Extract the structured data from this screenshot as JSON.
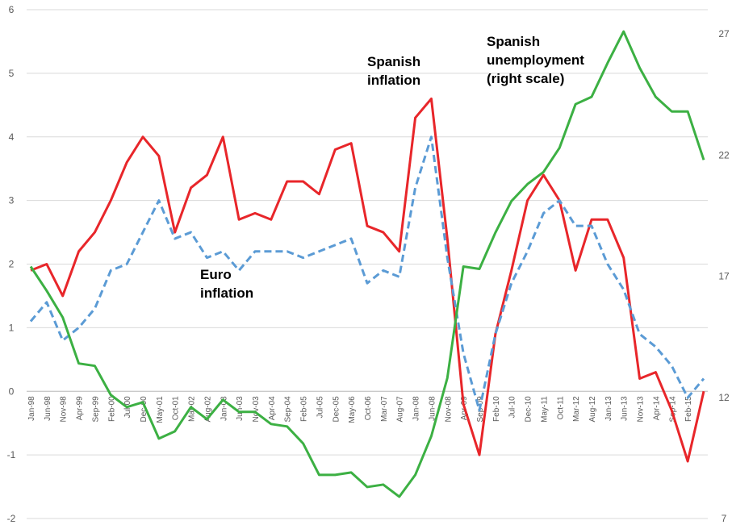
{
  "chart_data": {
    "type": "line",
    "categories": [
      "Jan-98",
      "Jun-98",
      "Nov-98",
      "Apr-99",
      "Sep-99",
      "Feb-00",
      "Jul-00",
      "Dec-00",
      "May-01",
      "Oct-01",
      "Mar-02",
      "Aug-02",
      "Jan-03",
      "Jun-03",
      "Nov-03",
      "Apr-04",
      "Sep-04",
      "Feb-05",
      "Jul-05",
      "Dec-05",
      "May-06",
      "Oct-06",
      "Mar-07",
      "Aug-07",
      "Jan-08",
      "Jun-08",
      "Nov-08",
      "Apr-09",
      "Sep-09",
      "Feb-10",
      "Jul-10",
      "Dec-10",
      "May-11",
      "Oct-11",
      "Mar-12",
      "Aug-12",
      "Jan-13",
      "Jun-13",
      "Nov-13",
      "Apr-14",
      "Sep-14",
      "Feb-15",
      null
    ],
    "series": [
      {
        "color": "#e8262a",
        "dash": false,
        "values": [
          1.9,
          2.0,
          1.5,
          2.2,
          2.5,
          3.0,
          3.6,
          4.0,
          3.7,
          2.5,
          3.2,
          3.4,
          4.0,
          2.7,
          2.8,
          2.7,
          3.3,
          3.3,
          3.1,
          3.8,
          3.9,
          2.6,
          2.5,
          2.2,
          4.3,
          4.6,
          2.4,
          -0.2,
          -1.0,
          0.9,
          1.9,
          3.0,
          3.4,
          3.0,
          1.9,
          2.7,
          2.7,
          2.1,
          0.2,
          0.3,
          -0.3,
          -1.1,
          0.0
        ]
      },
      {
        "color": "#5b9bd5",
        "dash": true,
        "values": [
          1.1,
          1.4,
          0.8,
          1.0,
          1.3,
          1.9,
          2.0,
          2.5,
          3.0,
          2.4,
          2.5,
          2.1,
          2.2,
          1.9,
          2.2,
          2.2,
          2.2,
          2.1,
          2.2,
          2.3,
          2.4,
          1.7,
          1.9,
          1.8,
          3.2,
          4.0,
          2.1,
          0.6,
          -0.3,
          0.9,
          1.7,
          2.2,
          2.8,
          3.0,
          2.6,
          2.6,
          2.0,
          1.6,
          0.9,
          0.7,
          0.4,
          -0.1,
          0.2
        ]
      },
      {
        "color": "#3cb043",
        "dash": false,
        "axis": "y2",
        "values": [
          17.4,
          16.4,
          15.3,
          13.4,
          13.3,
          12.1,
          11.6,
          11.8,
          10.3,
          10.6,
          11.6,
          11.1,
          11.9,
          11.4,
          11.4,
          10.9,
          10.8,
          10.1,
          8.8,
          8.8,
          8.9,
          8.3,
          8.4,
          7.9,
          8.8,
          10.4,
          12.8,
          17.4,
          17.3,
          18.8,
          20.1,
          20.8,
          21.3,
          22.3,
          24.1,
          24.4,
          25.8,
          27.1,
          25.6,
          24.4,
          23.8,
          23.8,
          21.8
        ]
      }
    ],
    "ylim": [
      -2,
      6
    ],
    "yticks": [
      -2,
      -1,
      0,
      1,
      2,
      3,
      4,
      5,
      6
    ],
    "y2lim": [
      7,
      28
    ],
    "y2ticks": [
      7,
      12,
      17,
      22,
      27
    ],
    "grid": true,
    "annotations": [
      {
        "lines": [
          "Spanish",
          "inflation"
        ]
      },
      {
        "lines": [
          "Spanish",
          "unemployment",
          "(right scale)"
        ]
      },
      {
        "lines": [
          "Euro",
          "inflation"
        ]
      }
    ]
  }
}
